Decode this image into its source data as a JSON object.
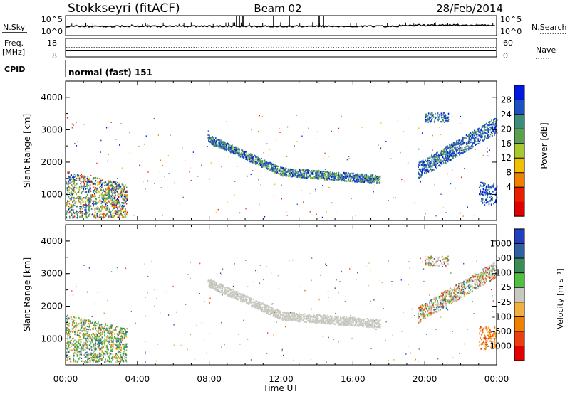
{
  "header": {
    "station": "Stokkseyri (fitACF)",
    "beam": "Beam 02",
    "date": "28/Feb/2014"
  },
  "status_panel": {
    "nsky_label": "N.Sky",
    "nsky_ticks": [
      "10^5",
      "10^0"
    ],
    "nsearch_label": "N.Search",
    "nsearch_ticks": [
      "10^5",
      "10^0"
    ],
    "freq_label_top": "Freq.",
    "freq_label_unit": "[MHz]",
    "freq_ticks": [
      "18",
      "8"
    ],
    "nave_label": "Nave",
    "nave_ticks": [
      "60",
      "0"
    ],
    "cpid_label": "CPID",
    "cpid_value": "normal (fast) 151"
  },
  "chart_data": [
    {
      "type": "heatmap",
      "name": "power",
      "ylabel": "Slant Range [km]",
      "yticks": [
        "4000",
        "3000",
        "2000",
        "1000"
      ],
      "ylim": [
        200,
        4500
      ],
      "colorbar_label": "Power [dB]",
      "colorbar_ticks": [
        "28",
        "24",
        "20",
        "16",
        "12",
        "8",
        "4"
      ],
      "colorbar_colors": [
        "#0018e0",
        "#1d50c0",
        "#3c8c78",
        "#5aa050",
        "#a8c830",
        "#f0c000",
        "#f08000",
        "#e82000",
        "#e00000"
      ],
      "features": [
        {
          "label": "near-range patch",
          "t_hours": [
            0.0,
            3.5
          ],
          "range_km": [
            300,
            1800
          ]
        },
        {
          "label": "main arc",
          "t_hours": [
            7.9,
            17.5
          ],
          "range_km": [
            1400,
            2750
          ]
        },
        {
          "label": "late echo band",
          "t_hours": [
            19.5,
            24.0
          ],
          "range_km": [
            1600,
            3200
          ]
        },
        {
          "label": "end-of-day patch",
          "t_hours": [
            23.0,
            24.0
          ],
          "range_km": [
            700,
            1400
          ]
        }
      ]
    },
    {
      "type": "heatmap",
      "name": "velocity",
      "ylabel": "Slant Range [km]",
      "yticks": [
        "4000",
        "3000",
        "2000",
        "1000"
      ],
      "ylim": [
        200,
        4500
      ],
      "colorbar_label": "Velocity [m s⁻¹]",
      "colorbar_ticks": [
        "1000",
        "500",
        "100",
        "25",
        "-25",
        "-100",
        "-500",
        "-1000"
      ],
      "colorbar_colors": [
        "#2040c0",
        "#3060a0",
        "#3c8c5a",
        "#50c040",
        "#c8c8c0",
        "#f0b040",
        "#f08000",
        "#e84010",
        "#e00000"
      ],
      "features": [
        {
          "label": "near-range patch",
          "t_hours": [
            0.0,
            3.5
          ],
          "range_km": [
            300,
            1800
          ]
        },
        {
          "label": "main arc (ground scatter)",
          "t_hours": [
            7.9,
            17.5
          ],
          "range_km": [
            1400,
            2750
          ]
        },
        {
          "label": "late echo band",
          "t_hours": [
            19.5,
            24.0
          ],
          "range_km": [
            1600,
            3200
          ]
        }
      ]
    }
  ],
  "x_axis": {
    "label": "Time UT",
    "ticks": [
      "00:00",
      "04:00",
      "08:00",
      "12:00",
      "16:00",
      "20:00",
      "00:00"
    ]
  }
}
